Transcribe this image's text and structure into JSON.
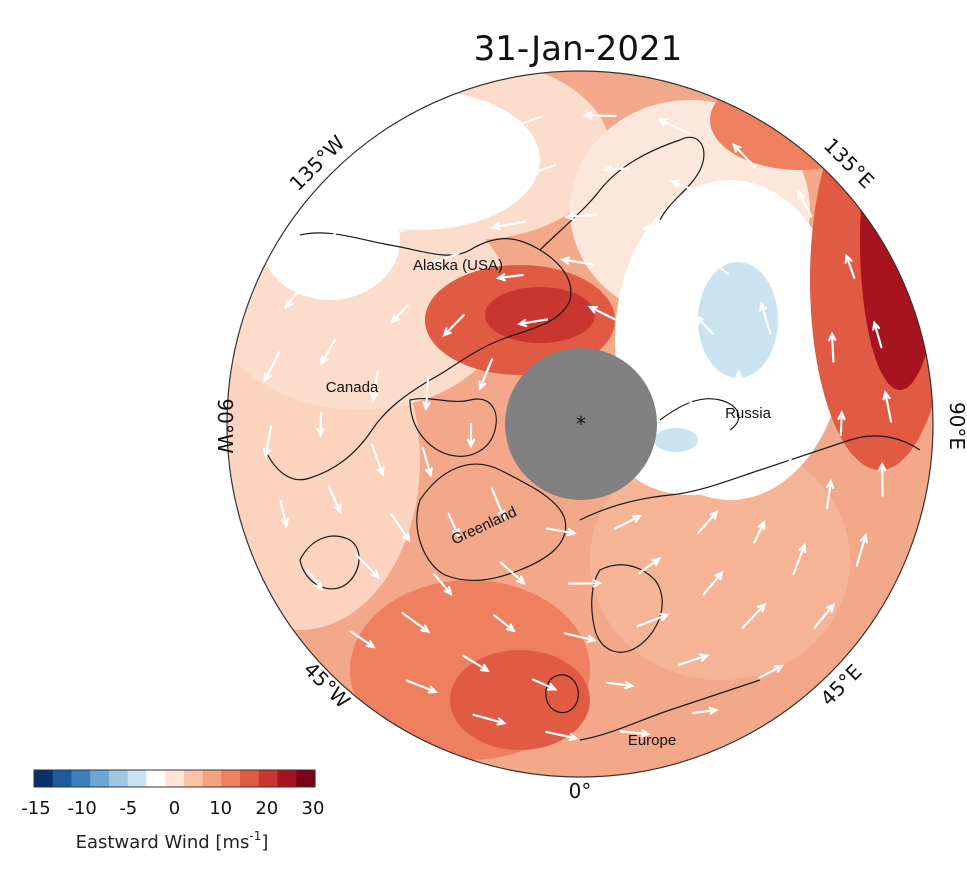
{
  "title": "31-Jan-2021",
  "longitude_labels": {
    "w135": "135°W",
    "e135": "135°E",
    "w90": "90°W",
    "e90": "90°E",
    "w45": "45°W",
    "e45": "45°E",
    "zero": "0°"
  },
  "regions": {
    "alaska": "Alaska (USA)",
    "canada": "Canada",
    "russia": "Russia",
    "greenland": "Greenland",
    "europe": "Europe"
  },
  "colorbar": {
    "ticks": [
      "-15",
      "-10",
      "-5",
      "0",
      "10",
      "20",
      "30"
    ],
    "label_main": "Eastward Wind [ms",
    "label_sup": "-1",
    "label_end": "]",
    "colors": [
      "#08306b",
      "#1c5c9c",
      "#3b7fbf",
      "#6aa6d4",
      "#9cc8e4",
      "#cbe3f1",
      "#ffffff",
      "#fde5d8",
      "#fbc4aa",
      "#f6a281",
      "#ee7f5f",
      "#e05a44",
      "#c8362f",
      "#a7131f",
      "#7d0019"
    ]
  },
  "colors": {
    "pole_cap": "#808080",
    "land_outline": "#1a1a1a",
    "arrows": "#ffffff"
  }
}
